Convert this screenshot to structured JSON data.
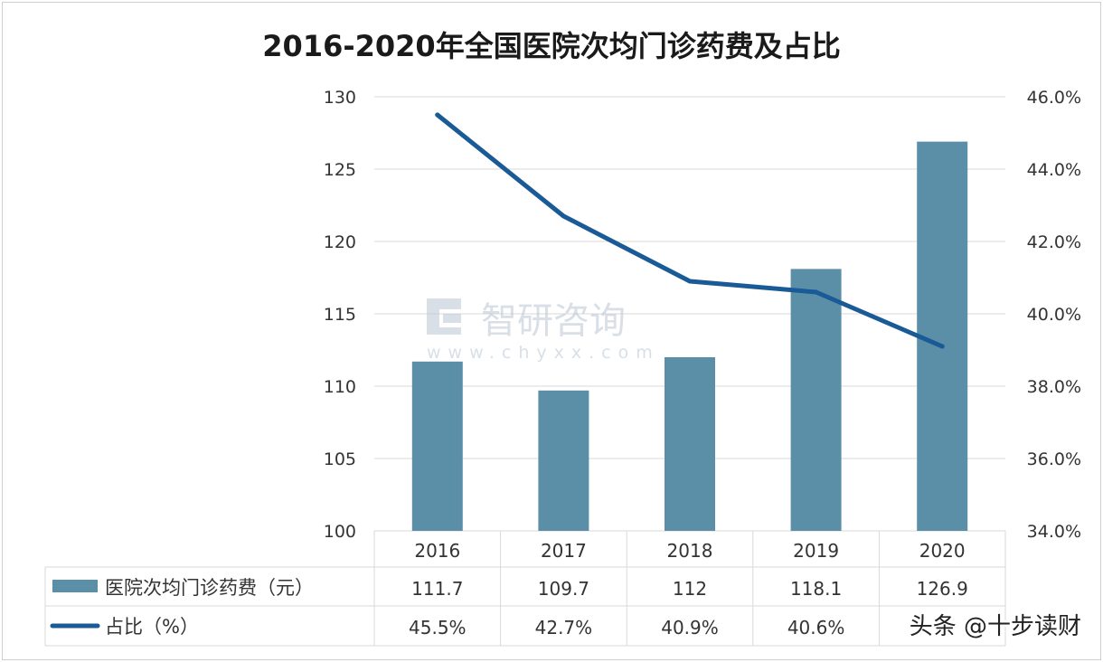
{
  "chart_data": {
    "type": "bar",
    "title": "2016-2020年全国医院次均门诊药费及占比",
    "categories": [
      "2016",
      "2017",
      "2018",
      "2019",
      "2020"
    ],
    "series": [
      {
        "name": "医院次均门诊药费（元）",
        "kind": "bar",
        "axis": "left",
        "color": "#5b8fa8",
        "values": [
          111.7,
          109.7,
          112,
          118.1,
          126.9
        ],
        "labels": [
          "111.7",
          "109.7",
          "112",
          "118.1",
          "126.9"
        ]
      },
      {
        "name": "占比（%）",
        "kind": "line",
        "axis": "right",
        "color": "#1a5a96",
        "values": [
          45.5,
          42.7,
          40.9,
          40.6,
          39.1
        ],
        "labels": [
          "45.5%",
          "42.7%",
          "40.9%",
          "40.6%",
          ""
        ]
      }
    ],
    "ylim_left": [
      100,
      130
    ],
    "yticks_left": [
      100,
      105,
      110,
      115,
      120,
      125,
      130
    ],
    "ylim_right": [
      34,
      46
    ],
    "yticks_right": [
      "34.0%",
      "36.0%",
      "38.0%",
      "40.0%",
      "42.0%",
      "44.0%",
      "46.0%"
    ],
    "grid": true,
    "legend": "data-table-below"
  },
  "watermark": {
    "text": "智研咨询",
    "url": "www.chyxx.com"
  },
  "source_mark": "头条 @十步读财",
  "colors": {
    "grid": "#d9d9d9",
    "text": "#333333",
    "title": "#1a1a1a"
  }
}
